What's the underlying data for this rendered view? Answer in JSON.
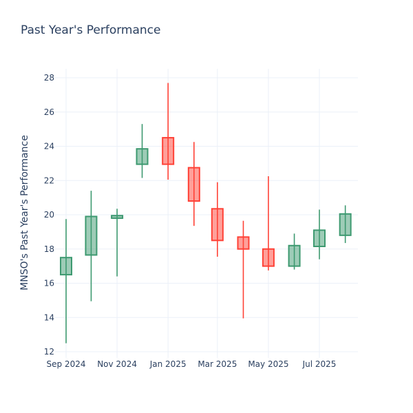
{
  "chart_data": {
    "type": "candlestick",
    "title": "Past Year's Performance",
    "xlabel": "",
    "ylabel": "MNSO's Past Year's Performance",
    "ylim": [
      11.8,
      28.6
    ],
    "yticks": [
      12,
      14,
      16,
      18,
      20,
      22,
      24,
      26,
      28
    ],
    "xticks": [
      {
        "label": "Sep 2024",
        "date": "2024-09-01"
      },
      {
        "label": "Nov 2024",
        "date": "2024-11-01"
      },
      {
        "label": "Jan 2025",
        "date": "2025-01-01"
      },
      {
        "label": "Mar 2025",
        "date": "2025-03-01"
      },
      {
        "label": "May 2025",
        "date": "2025-05-01"
      },
      {
        "label": "Jul 2025",
        "date": "2025-07-01"
      }
    ],
    "grid": true,
    "increasing_color": "#3d9970",
    "decreasing_color": "#ff4136",
    "candles": [
      {
        "date": "2024-09-01",
        "open": 16.5,
        "high": 19.75,
        "low": 12.5,
        "close": 17.5
      },
      {
        "date": "2024-10-01",
        "open": 17.65,
        "high": 21.4,
        "low": 14.95,
        "close": 19.9
      },
      {
        "date": "2024-11-01",
        "open": 19.8,
        "high": 20.35,
        "low": 16.4,
        "close": 19.95
      },
      {
        "date": "2024-12-01",
        "open": 22.95,
        "high": 25.3,
        "low": 22.15,
        "close": 23.85
      },
      {
        "date": "2025-01-01",
        "open": 24.5,
        "high": 27.7,
        "low": 22.05,
        "close": 22.95
      },
      {
        "date": "2025-02-01",
        "open": 22.75,
        "high": 24.25,
        "low": 19.35,
        "close": 20.8
      },
      {
        "date": "2025-03-01",
        "open": 20.35,
        "high": 21.9,
        "low": 17.55,
        "close": 18.5
      },
      {
        "date": "2025-04-01",
        "open": 18.7,
        "high": 19.65,
        "low": 13.95,
        "close": 18.0
      },
      {
        "date": "2025-05-01",
        "open": 18.0,
        "high": 22.25,
        "low": 16.75,
        "close": 17.0
      },
      {
        "date": "2025-06-01",
        "open": 17.0,
        "high": 18.9,
        "low": 16.8,
        "close": 18.2
      },
      {
        "date": "2025-07-01",
        "open": 18.15,
        "high": 20.3,
        "low": 17.4,
        "close": 19.1
      },
      {
        "date": "2025-08-01",
        "open": 18.8,
        "high": 20.55,
        "low": 18.35,
        "close": 20.05
      }
    ]
  }
}
